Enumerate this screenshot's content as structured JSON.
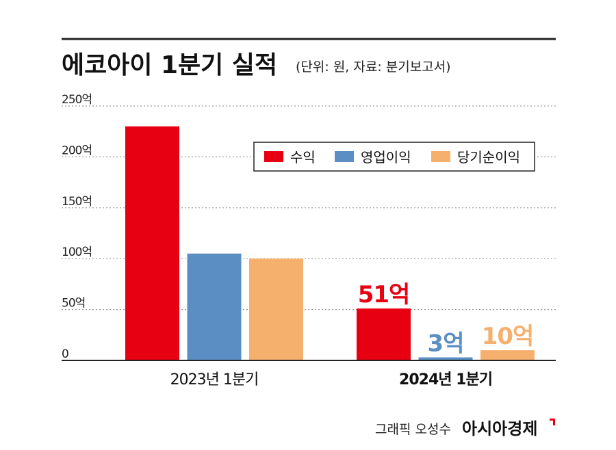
{
  "title": "에코아이 1분기 실적",
  "subtitle": "(단위: 원, 자료: 분기보고서)",
  "credit": {
    "label": "그래픽 오성수",
    "brand": "아시아경제"
  },
  "colors": {
    "revenue": "#e60012",
    "operating": "#5b8fc4",
    "net": "#f6b06e",
    "rule": "#222222",
    "grid": "#9a9a9a",
    "text": "#222222"
  },
  "chart_data": {
    "type": "bar",
    "categories": [
      "2023년 1분기",
      "2024년 1분기"
    ],
    "series": [
      {
        "name": "수익",
        "color": "#e60012",
        "values": [
          230,
          51
        ],
        "labels": [
          "",
          "51억"
        ]
      },
      {
        "name": "영업이익",
        "color": "#5b8fc4",
        "values": [
          105,
          3
        ],
        "labels": [
          "",
          "3억"
        ]
      },
      {
        "name": "당기순이익",
        "color": "#f6b06e",
        "values": [
          100,
          10
        ],
        "labels": [
          "",
          "10억"
        ]
      }
    ],
    "y_ticks": [
      {
        "value": 0,
        "label": "0"
      },
      {
        "value": 50,
        "label": "50억"
      },
      {
        "value": 100,
        "label": "100억"
      },
      {
        "value": 150,
        "label": "150억"
      },
      {
        "value": 200,
        "label": "200억"
      },
      {
        "value": 250,
        "label": "250억"
      }
    ],
    "ylim": [
      0,
      250
    ],
    "unit": "억원",
    "grid": true,
    "legend_position": "top-right"
  }
}
